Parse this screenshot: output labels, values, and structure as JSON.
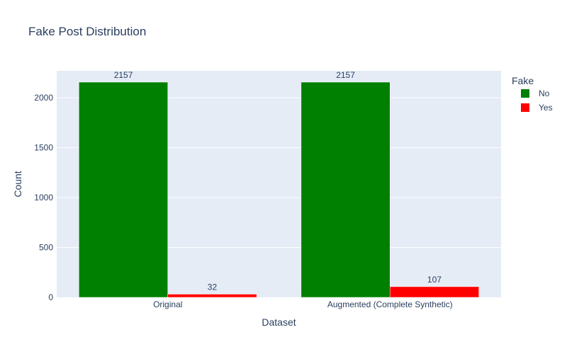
{
  "chart_data": {
    "type": "bar",
    "title": "Fake Post Distribution",
    "xlabel": "Dataset",
    "ylabel": "Count",
    "categories": [
      "Original",
      "Augmented (Complete Synthetic)"
    ],
    "series": [
      {
        "name": "No",
        "values": [
          2157,
          2157
        ],
        "color": "#008000"
      },
      {
        "name": "Yes",
        "values": [
          32,
          107
        ],
        "color": "#ff0000"
      }
    ],
    "data_labels": [
      [
        "2157",
        "2157"
      ],
      [
        "32",
        "107"
      ]
    ],
    "ylim": [
      0,
      2270.53
    ],
    "yticks": [
      0,
      500,
      1000,
      1500,
      2000
    ],
    "ytick_labels": [
      "0",
      "500",
      "1000",
      "1500",
      "2000"
    ],
    "grid": true,
    "legend": {
      "title": "Fake",
      "position": "top-right"
    },
    "colors": {
      "plot_background": "#e5ecf6",
      "gridline": "#ffffff",
      "text": "#2a3f5f"
    }
  }
}
